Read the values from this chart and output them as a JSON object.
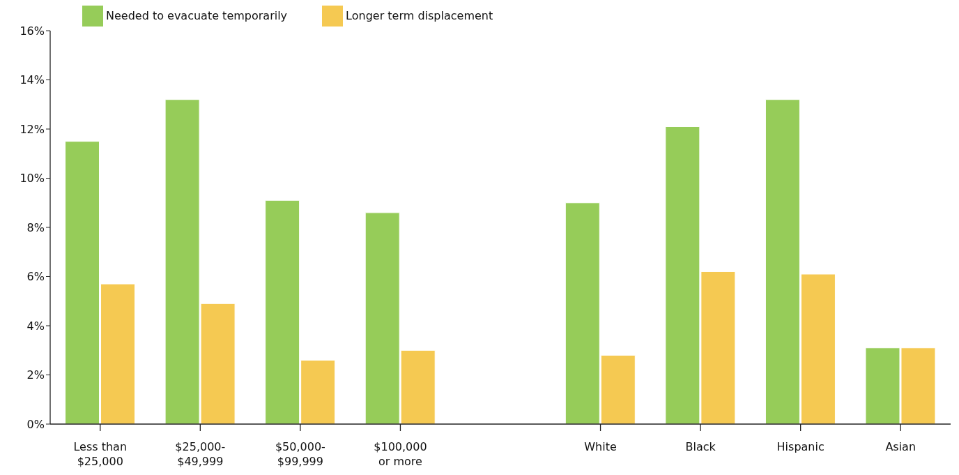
{
  "chart_data": {
    "type": "bar",
    "categories": [
      "Less than\n$25,000",
      "$25,000-\n$49,999",
      "$50,000-\n$99,999",
      "$100,000\nor more",
      null,
      "White",
      "Black",
      "Hispanic",
      "Asian"
    ],
    "series": [
      {
        "name": "Needed to evacuate temporarily",
        "color": "#96cc59",
        "values": [
          11.5,
          13.2,
          9.1,
          8.6,
          null,
          9.0,
          12.1,
          13.2,
          3.1
        ]
      },
      {
        "name": "Longer term displacement",
        "color": "#f5c952",
        "values": [
          5.7,
          4.9,
          2.6,
          3.0,
          null,
          2.8,
          6.2,
          6.1,
          3.1
        ]
      }
    ],
    "ylim": [
      0,
      16
    ],
    "yticks": [
      {
        "value": 0,
        "label": "0%"
      },
      {
        "value": 2,
        "label": "2%"
      },
      {
        "value": 4,
        "label": "4%"
      },
      {
        "value": 6,
        "label": "6%"
      },
      {
        "value": 8,
        "label": "8%"
      },
      {
        "value": 10,
        "label": "10%"
      },
      {
        "value": 12,
        "label": "12%"
      },
      {
        "value": 14,
        "label": "14%"
      },
      {
        "value": 16,
        "label": "16%"
      }
    ],
    "grid": false,
    "legend": "top left"
  }
}
